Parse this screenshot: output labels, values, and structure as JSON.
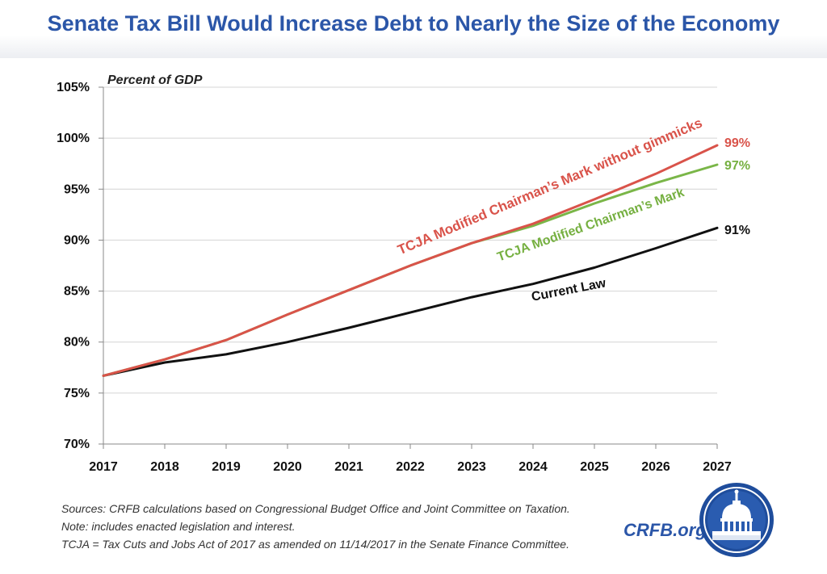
{
  "title": "Senate Tax Bill Would Increase Debt to Nearly the Size of the Economy",
  "chart_data": {
    "type": "line",
    "title": "Senate Tax Bill Would Increase Debt to Nearly the Size of the Economy",
    "ylabel": "Percent of GDP",
    "xlabel": "",
    "x": [
      2017,
      2018,
      2019,
      2020,
      2021,
      2022,
      2023,
      2024,
      2025,
      2026,
      2027
    ],
    "xticks": [
      "2017",
      "2018",
      "2019",
      "2020",
      "2021",
      "2022",
      "2023",
      "2024",
      "2025",
      "2026",
      "2027"
    ],
    "yticks": [
      "70%",
      "75%",
      "80%",
      "85%",
      "90%",
      "95%",
      "100%",
      "105%"
    ],
    "ytick_values": [
      70,
      75,
      80,
      85,
      90,
      95,
      100,
      105
    ],
    "ylim": [
      70,
      105
    ],
    "xlim": [
      2017,
      2027
    ],
    "grid": "horizontal",
    "series": [
      {
        "name": "TCJA Modified Chairman's Mark without gimmicks",
        "label": "TCJA Modified Chairman’s Mark without gimmicks",
        "end_label": "99%",
        "color": "#d9534a",
        "label_color": "#d9534a",
        "values": [
          76.7,
          78.3,
          80.2,
          82.7,
          85.1,
          87.5,
          89.7,
          91.6,
          94.0,
          96.5,
          99.3
        ]
      },
      {
        "name": "TCJA Modified Chairman's Mark",
        "label": "TCJA Modified Chairman’s Mark",
        "end_label": "97%",
        "color": "#7ab648",
        "label_color": "#76b041",
        "values": [
          76.7,
          78.3,
          80.2,
          82.7,
          85.1,
          87.5,
          89.7,
          91.4,
          93.6,
          95.6,
          97.4
        ]
      },
      {
        "name": "Current Law",
        "label": "Current Law",
        "end_label": "91%",
        "color": "#111111",
        "label_color": "#111111",
        "values": [
          76.7,
          78.0,
          78.8,
          80.0,
          81.4,
          82.9,
          84.4,
          85.7,
          87.3,
          89.2,
          91.2
        ]
      }
    ]
  },
  "footnotes": {
    "sources": "Sources: CRFB calculations based on Congressional Budget Office and Joint Committee on Taxation.",
    "note": "Note: includes enacted legislation and interest.",
    "tcja": "TCJA = Tax Cuts and Jobs Act of 2017 as amended on 11/14/2017 in the Senate Finance Committee."
  },
  "branding": {
    "text": "CRFB.org",
    "logo_icon": "capitol-dome-seal-icon",
    "brand_color": "#2b56a8"
  }
}
